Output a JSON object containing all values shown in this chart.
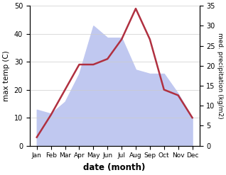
{
  "months": [
    "Jan",
    "Feb",
    "Mar",
    "Apr",
    "May",
    "Jun",
    "Jul",
    "Aug",
    "Sep",
    "Oct",
    "Nov",
    "Dec"
  ],
  "temperature": [
    3,
    11,
    20,
    29,
    29,
    31,
    38,
    49,
    38,
    20,
    18,
    10
  ],
  "precipitation": [
    9,
    8,
    11,
    18,
    30,
    27,
    27,
    19,
    18,
    18,
    13,
    7
  ],
  "temp_color": "#b03040",
  "precip_fill_color": "#c0c8f0",
  "left_ylim": [
    0,
    50
  ],
  "right_ylim": [
    0,
    35
  ],
  "left_yticks": [
    0,
    10,
    20,
    30,
    40,
    50
  ],
  "right_yticks": [
    0,
    5,
    10,
    15,
    20,
    25,
    30,
    35
  ],
  "xlabel": "date (month)",
  "ylabel_left": "max temp (C)",
  "ylabel_right": "med. precipitation (kg/m2)",
  "figsize": [
    3.18,
    2.47
  ],
  "dpi": 100
}
